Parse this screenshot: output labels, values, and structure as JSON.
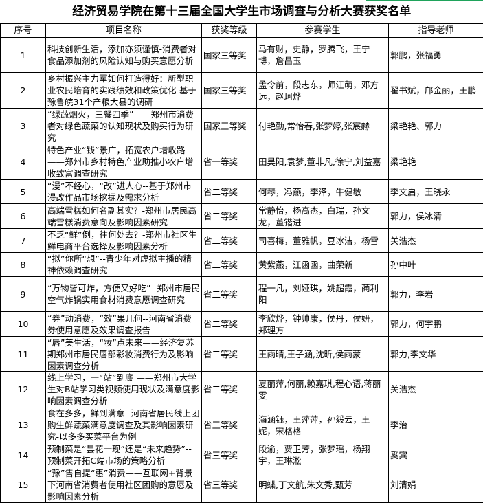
{
  "title": "经济贸易学院在第十三届全国大学生市场调查与分析大赛获奖名单",
  "columns": [
    "序号",
    "项目名称",
    "获奖等级",
    "参赛学生",
    "指导老师"
  ],
  "rows": [
    {
      "no": "1",
      "project": "科技创新生活，添加亦须谨慎-消费者对食品添加剂的风险认知与购买意愿分析",
      "award": "国家三等奖",
      "students": "马有财，史静，罗腾飞，王宁博，詹昌玉",
      "advisors": "郭鹏，张福勇"
    },
    {
      "no": "2",
      "project": "乡村振兴主力军如何打造得好：新型职业农民培育的实践绩效和政策优化-基于豫鲁皖31个产粮大县的调研",
      "award": "国家三等奖",
      "students": "孟令前，段志东，师江萌，邓方远，赵珂烨",
      "advisors": "翟书斌，邝金丽，王鹏"
    },
    {
      "no": "3",
      "project": "“绿蔬烟火，三餐四季”——郑州市消费者对绿色蔬菜的认知现状及购买行为研究",
      "award": "国家三等奖",
      "students": "付艳勤,常怡春,张梦婷,张宸赫",
      "advisors": "梁艳艳、郭力"
    },
    {
      "no": "4",
      "project": "特色产业“钱”景广，拓宽农户增收路——郑州市乡村特色产业助推小农户增收致富调查研究",
      "award": "省一等奖",
      "students": "田昊阳,袁梦,董非凡,徐宁,刘益嘉",
      "advisors": "梁艳艳"
    },
    {
      "no": "5",
      "project": "“漫”不经心，“改”进人心--基于郑州市漫改作品市场挖掘及需求分析",
      "award": "省二等奖",
      "students": "何琴，冯燕，李泽，牛健敏",
      "advisors": "李文启，王晓永"
    },
    {
      "no": "6",
      "project": "高端雪糕如何名副其实？-郑州市居民高端雪糕消费意向及影响因素研究",
      "award": "省二等奖",
      "students": "常静怡，杨高杰，白瑞，孙文龙，董锴进",
      "advisors": "郭力，侯冰清"
    },
    {
      "no": "7",
      "project": "不乏“鲜”例，往何处去？-郑州市社区生鲜电商平台选择及影响因素分析",
      "award": "省二等奖",
      "students": "司喜梅，董雅帆，豆冰洁，杨雪",
      "advisors": "关浩杰"
    },
    {
      "no": "8",
      "project": "“拟”你所“想”--青少年对虚拟主播的精神依赖调查研究",
      "award": "省二等奖",
      "students": "黄紫燕，江函函，曲荣新",
      "advisors": "孙中叶"
    },
    {
      "no": "9",
      "project": "“万物皆可炸，方便又好吃”--郑州市居民空气炸锅实用食材消费意愿调查研究",
      "award": "省二等奖",
      "students": "程一凡，刘娅琪，姚超霞，蔺利阳",
      "advisors": "郭力，李岩"
    },
    {
      "no": "10",
      "project": "“券”动消费，“效”果几何--河南省消费券使用意愿及效果调查报告",
      "award": "省二等奖",
      "students": "李欣烨，钟帅康，侯丹，侯妍，郑理方",
      "advisors": "郭力，何宇鹏"
    },
    {
      "no": "11",
      "project": "“唇”美生活，“妆”点未来——经济复苏期郑州市居民唇部彩妆消费行为及影响因素调查分析",
      "award": "省二等奖",
      "students": "王雨晴,王子涵,沈昕,侯雨蒙",
      "advisors": "郭力,李文华"
    },
    {
      "no": "12",
      "project": "线上学习，一“站”到底 ——郑州市大学生对B站学习类视频使用现状及满意度影响因素调查分析",
      "award": "省二等奖",
      "students": "夏丽萍,何丽,赖嘉琪,程心语,蒋丽雯",
      "advisors": "关浩杰"
    },
    {
      "no": "13",
      "project": "食在多多，鲜到满意--河南省居民线上团购生鲜蔬菜满意度调查及其影响因素研究-以多多买菜平台为例",
      "award": "省三等奖",
      "students": "海涵钰，王萍萍，孙毅云，王妮，宋格格",
      "advisors": "李治"
    },
    {
      "no": "14",
      "project": "预制菜是“昙花一现”还是“未来趋势”--预制菜开拓C端市场的策略分析",
      "award": "省三等奖",
      "students": "段渝，贾卫芳，张梦瑶，杨翔宇，王琳淞",
      "advisors": "奚宾"
    },
    {
      "no": "15",
      "project": "“豫”售自提“惠”消费——互联网+背景下河南省消费者使用社区团购的意愿及影响因素分析",
      "award": "省三等奖",
      "students": "明蝶,丁文航,朱文秀,甄芳",
      "advisors": "刘清娟"
    }
  ]
}
